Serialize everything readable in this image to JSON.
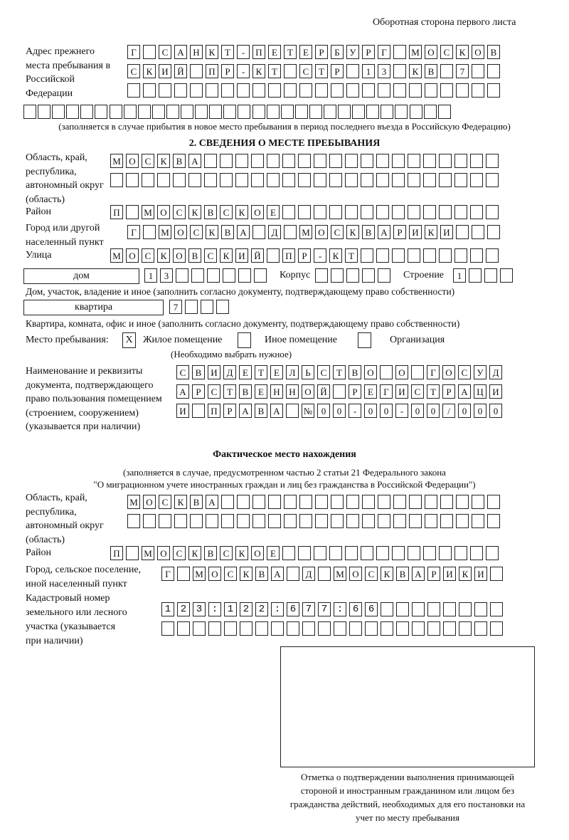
{
  "header": {
    "page_side": "Оборотная сторона первого листа"
  },
  "previous_address": {
    "label": "Адрес прежнего места пребывания в Российской Федерации",
    "rows": [
      "Г САНКТ-ПЕТЕРБУРГ МОСКОВ",
      "СКИЙ ПР-КТ СТР 13 КВ 7",
      "",
      ""
    ],
    "note": "(заполняется в случае прибытия в новое место пребывания в период последнего въезда в Российскую Федерацию)"
  },
  "section2": {
    "title": "2. СВЕДЕНИЯ О МЕСТЕ ПРЕБЫВАНИЯ",
    "region_label": "Область, край, республика, автономный округ (область)",
    "region_rows": [
      "МОСКВА",
      ""
    ],
    "district_label": "Район",
    "district": "П МОСКВСКОЕ",
    "city_label": "Город или другой населенный пункт",
    "city": "Г МОСКВА Д МОСКВАРИКИ",
    "street_label": "Улица",
    "street": "МОСКОВСКИЙ ПР-КТ",
    "house_type": "дом",
    "house_number": "13",
    "korpus_label": "Корпус",
    "korpus": "",
    "building_label": "Строение",
    "building": "1",
    "house_caption": "Дом, участок, владение и иное (заполнить согласно документу, подтверждающему право собственности)",
    "apartment_type": "квартира",
    "apartment_number": "7",
    "apartment_caption": "Квартира, комната, офис и иное (заполнить согласно документу, подтверждающему право собственности)",
    "stay_place_label": "Место пребывания:",
    "options": [
      {
        "label": "Жилое помещение",
        "mark": "X"
      },
      {
        "label": "Иное помещение",
        "mark": ""
      },
      {
        "label": "Организация",
        "mark": ""
      }
    ],
    "choose_note": "(Необходимо выбрать нужное)",
    "document_label": "Наименование и реквизиты документа, подтверждающего право пользования помещением (строением, сооружением) (указывается при наличии)",
    "document_rows": [
      "СВИДЕТЕЛЬСТВО О ГОСУД",
      "АРСТВЕННОЙ РЕГИСТРАЦИ",
      "И ПРАВА №00-00-00/000"
    ]
  },
  "actual_location": {
    "title": "Фактическое место нахождения",
    "note_line1": "(заполняется в случае, предусмотренном частью 2 статьи 21 Федерального закона",
    "note_line2": "\"О миграционном учете иностранных граждан и лиц без гражданства в Российской Федерации\")",
    "region_label": "Область, край, республика, автономный округ (область)",
    "region_rows": [
      "МОСКВА",
      ""
    ],
    "district_label": "Район",
    "district": "П МОСКВСКОЕ",
    "city_label": "Город, сельское поселение, иной населенный пункт",
    "city": "Г МОСКВА Д МОСКВАРИКИ",
    "cadastral_label": "Кадастровый номер земельного или лесного участка (указывается при наличии)",
    "cadastral_rows": [
      "123:122:677:66",
      ""
    ]
  },
  "confirmation": {
    "caption": "Отметка о подтверждении выполнения принимающей стороной и иностранным гражданином или лицом без гражданства действий, необходимых для его постановки на учет по месту пребывания"
  }
}
